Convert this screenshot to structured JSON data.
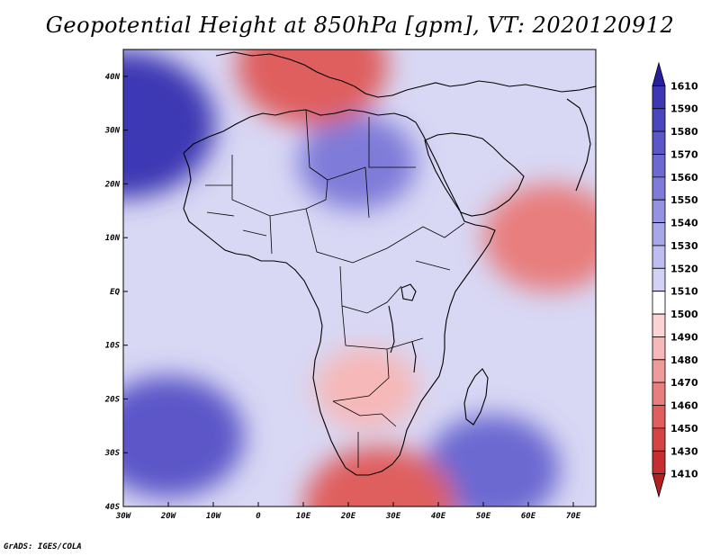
{
  "title": "Geopotential Height at 850hPa [gpm], VT: 2020120912",
  "credit": "GrADS: IGES/COLA",
  "map": {
    "type": "filled-contour",
    "variable": "Geopotential Height at 850hPa",
    "units": "gpm",
    "valid_time": "2020120912",
    "lon_range": [
      -30,
      75
    ],
    "lat_range": [
      -40,
      45
    ],
    "lon_ticks": [
      "30W",
      "20W",
      "10W",
      "0",
      "10E",
      "20E",
      "30E",
      "40E",
      "50E",
      "60E",
      "70E"
    ],
    "lat_ticks": [
      "40N",
      "30N",
      "20N",
      "10N",
      "EQ",
      "10S",
      "20S",
      "30S",
      "40S"
    ],
    "features": [
      {
        "name": "high-north-atlantic",
        "lon": -30,
        "lat": 31,
        "value": 1590
      },
      {
        "name": "high-south-atlantic",
        "lon": -20,
        "lat": -27,
        "value": 1570
      },
      {
        "name": "high-south-indian",
        "lon": 52,
        "lat": -33,
        "value": 1560
      },
      {
        "name": "high-sahara",
        "lon": 22,
        "lat": 24,
        "value": 1550
      },
      {
        "name": "low-mediterranean",
        "lon": 12,
        "lat": 42,
        "value": 1450
      },
      {
        "name": "low-southern-africa",
        "lon": 27,
        "lat": -40,
        "value": 1450
      },
      {
        "name": "low-arabian-sea",
        "lon": 65,
        "lat": 10,
        "value": 1460
      },
      {
        "name": "low-central-africa",
        "lon": 24,
        "lat": -18,
        "value": 1480
      }
    ]
  },
  "colorbar": {
    "labels": [
      "1610",
      "1590",
      "1580",
      "1570",
      "1560",
      "1550",
      "1540",
      "1530",
      "1520",
      "1510",
      "1500",
      "1490",
      "1480",
      "1470",
      "1460",
      "1450",
      "1430",
      "1410"
    ],
    "colors": [
      "#271f9c",
      "#3d37b3",
      "#4a46be",
      "#5b57c8",
      "#6c69d1",
      "#7f7cd9",
      "#9492e1",
      "#a9a7e8",
      "#bebcf0",
      "#d3d2f6",
      "#ffffff",
      "#fbd3d3",
      "#f6b8b8",
      "#ef9b9b",
      "#e87e7e",
      "#df5f5f",
      "#d54444",
      "#c62f2f",
      "#b51f1f"
    ]
  },
  "colors": {
    "high_max": "#1f168f",
    "low_min": "#a80f0f",
    "neutral": "#ffffff",
    "coastline": "#000000"
  }
}
